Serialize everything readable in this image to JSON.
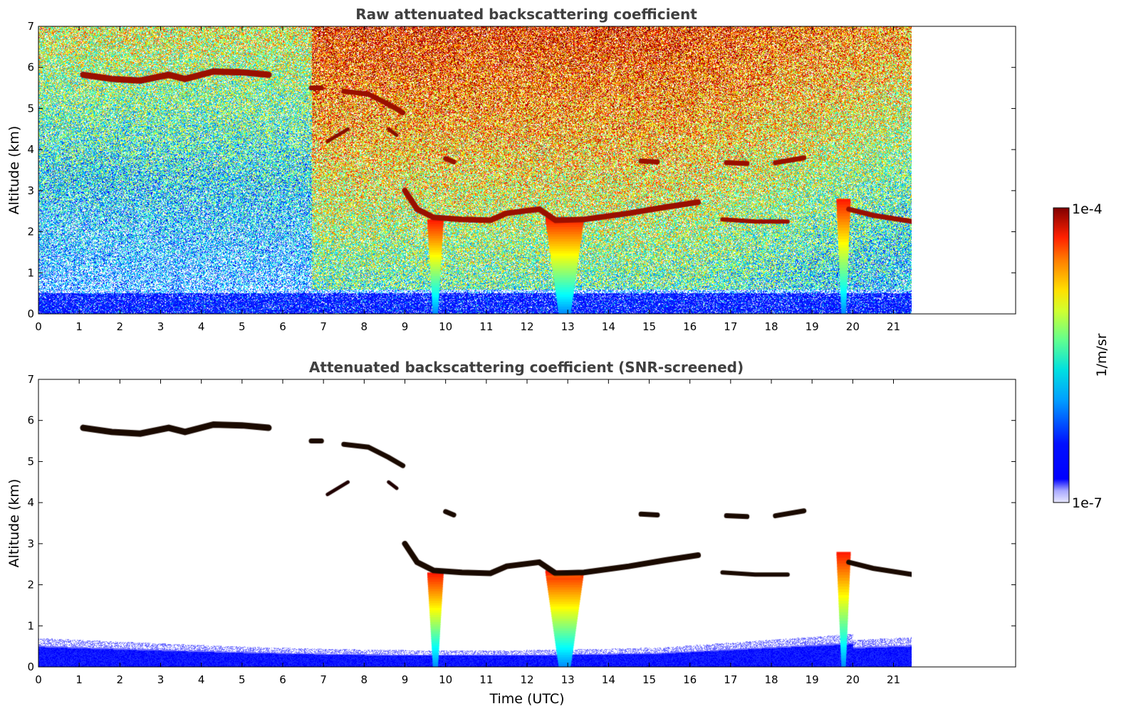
{
  "chart_data": [
    {
      "type": "heatmap",
      "title": "Raw attenuated backscattering coefficient",
      "xlabel": "",
      "ylabel": "Altitude (km)",
      "xlim": [
        0,
        24
      ],
      "ylim": [
        0,
        7
      ],
      "data_x_range": [
        0,
        21.45
      ],
      "x_ticks": [
        0,
        1,
        2,
        3,
        4,
        5,
        6,
        7,
        8,
        9,
        10,
        11,
        12,
        13,
        14,
        15,
        16,
        17,
        18,
        19,
        20,
        21
      ],
      "y_ticks": [
        0,
        1,
        2,
        3,
        4,
        5,
        6,
        7
      ],
      "color_scale": "log",
      "colormap": "jet",
      "features": [
        {
          "kind": "cirrus layer",
          "x": [
            1.1,
            5.7
          ],
          "y": [
            5.6,
            5.9
          ]
        },
        {
          "kind": "cloud layer",
          "x": [
            6.7,
            9.0
          ],
          "y": [
            4.3,
            5.6
          ]
        },
        {
          "kind": "cloud layer",
          "x": [
            9.0,
            21.45
          ],
          "y": [
            2.0,
            3.9
          ]
        },
        {
          "kind": "precipitation / low cloud",
          "x": [
            9.6,
            9.9
          ],
          "y": [
            0,
            2.3
          ]
        },
        {
          "kind": "precipitation / low cloud",
          "x": [
            12.4,
            13.4
          ],
          "y": [
            0,
            2.4
          ]
        },
        {
          "kind": "precipitation / low cloud",
          "x": [
            19.6,
            19.9
          ],
          "y": [
            0,
            2.8
          ]
        },
        {
          "kind": "boundary layer",
          "x": [
            0,
            21.45
          ],
          "y": [
            0,
            0.6
          ]
        }
      ]
    },
    {
      "type": "heatmap",
      "title": "Attenuated backscattering coefficient (SNR-screened)",
      "xlabel": "Time (UTC)",
      "ylabel": "Altitude (km)",
      "xlim": [
        0,
        24
      ],
      "ylim": [
        0,
        7
      ],
      "data_x_range": [
        0,
        21.45
      ],
      "x_ticks": [
        0,
        1,
        2,
        3,
        4,
        5,
        6,
        7,
        8,
        9,
        10,
        11,
        12,
        13,
        14,
        15,
        16,
        17,
        18,
        19,
        20,
        21
      ],
      "y_ticks": [
        0,
        1,
        2,
        3,
        4,
        5,
        6,
        7
      ],
      "color_scale": "log",
      "colormap": "jet"
    }
  ],
  "colorbar": {
    "label": "1/m/sr",
    "max_label": "1e-4",
    "min_label": "1e-7",
    "range": [
      1e-07,
      0.0001
    ],
    "scale": "log"
  }
}
